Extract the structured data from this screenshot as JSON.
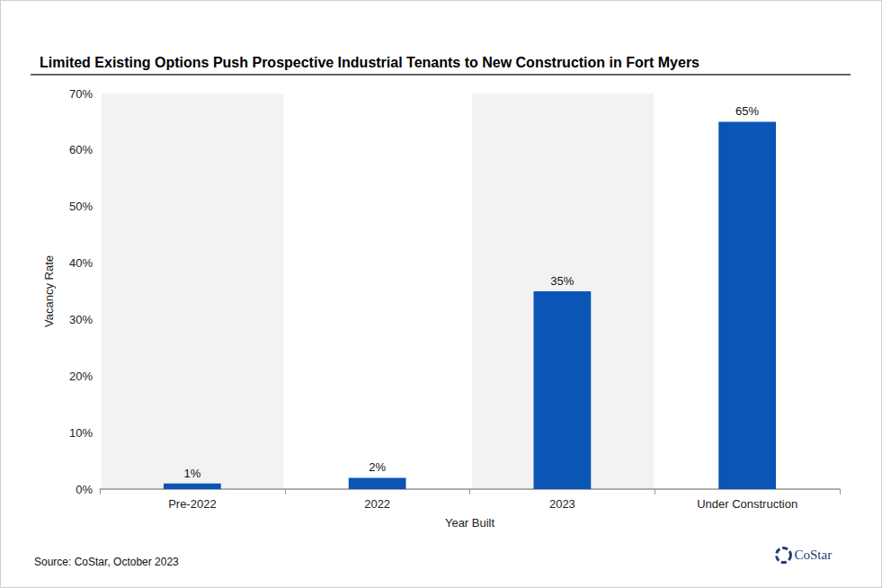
{
  "chart_data": {
    "type": "bar",
    "title": "Limited Existing Options Push Prospective Industrial Tenants to New Construction in Fort Myers",
    "x_label": "Year Built",
    "y_label": "Vacancy Rate",
    "source": "Source: CoStar, October 2023",
    "logo_text": "CoStar",
    "categories": [
      "Pre-2022",
      "2022",
      "2023",
      "Under Construction"
    ],
    "values": [
      1,
      2,
      35,
      65
    ],
    "value_labels": [
      "1%",
      "2%",
      "35%",
      "65%"
    ],
    "color": "#0a55b5",
    "ylim": [
      0,
      70
    ],
    "yticks": [
      {
        "value": 0,
        "label": "0%"
      },
      {
        "value": 10,
        "label": "10%"
      },
      {
        "value": 20,
        "label": "20%"
      },
      {
        "value": 30,
        "label": "30%"
      },
      {
        "value": 40,
        "label": "40%"
      },
      {
        "value": 50,
        "label": "50%"
      },
      {
        "value": 60,
        "label": "60%"
      },
      {
        "value": 70,
        "label": "70%"
      }
    ],
    "grid": true,
    "data_labels": true
  }
}
